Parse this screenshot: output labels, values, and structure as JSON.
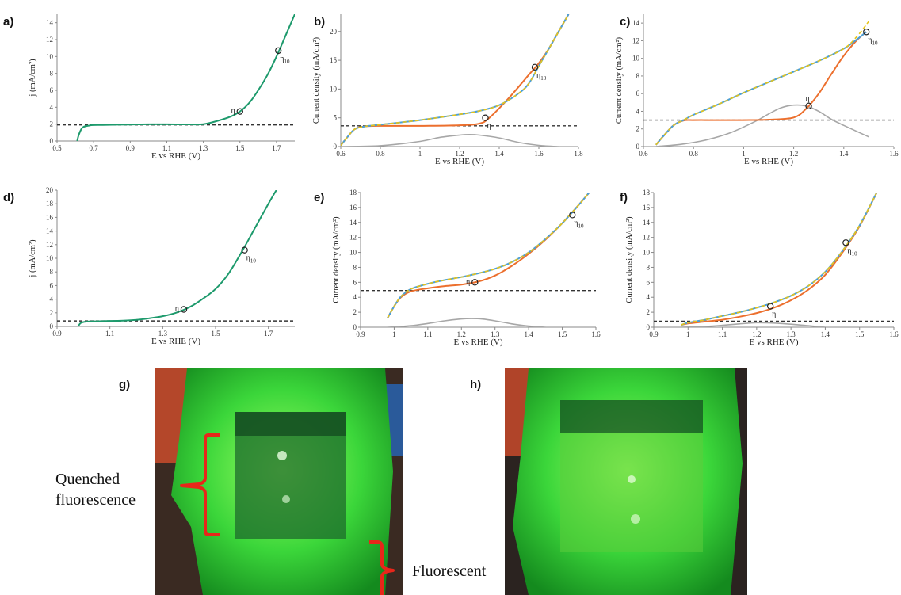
{
  "colors": {
    "green": "#1d9a6c",
    "orange": "#ec6f2d",
    "blue": "#4a9fd9",
    "yellow_dash": "#e6c419",
    "gray": "#a7a7a7",
    "dashed": "#333333"
  },
  "photos": {
    "g": {
      "letter": "g)",
      "label_quenched": "Quenched fluorescence",
      "label_fluorescent": "Fluorescent"
    },
    "h": {
      "letter": "h)"
    }
  },
  "chart_data": [
    {
      "panel": "a)",
      "type": "line",
      "xlabel": "E vs RHE (V)",
      "ylabel": "j (mA/cm²)",
      "xlim": [
        0.5,
        1.8
      ],
      "ylim": [
        0,
        15
      ],
      "xticks": [
        "0.5",
        "0.7",
        "0.9",
        "1.1",
        "1.3",
        "1.5",
        "1.7"
      ],
      "xtick_values": [
        0.5,
        0.7,
        0.9,
        1.1,
        1.3,
        1.5,
        1.7
      ],
      "yticks": [
        "0",
        "2",
        "4",
        "6",
        "8",
        "10",
        "12",
        "14"
      ],
      "ytick_values": [
        0,
        2,
        4,
        6,
        8,
        10,
        12,
        14
      ],
      "baseline": 1.9,
      "series": [
        {
          "color": "green",
          "style": "solid",
          "x": [
            0.61,
            0.62,
            0.64,
            0.68,
            0.75,
            0.9,
            1.0,
            1.1,
            1.2,
            1.3,
            1.38,
            1.45,
            1.5,
            1.55,
            1.6,
            1.65,
            1.7,
            1.75,
            1.8
          ],
          "y": [
            0.0,
            0.8,
            1.6,
            1.85,
            1.9,
            1.95,
            1.98,
            1.98,
            1.97,
            2.0,
            2.4,
            2.9,
            3.5,
            4.5,
            6.0,
            7.8,
            10.0,
            12.5,
            15.0
          ]
        }
      ],
      "markers": [
        {
          "x": 1.5,
          "y": 3.5,
          "label": "η",
          "pos": "left"
        },
        {
          "x": 1.71,
          "y": 10.7,
          "label": "η10",
          "pos": "below"
        }
      ]
    },
    {
      "panel": "b)",
      "type": "line",
      "xlabel": "E vs RHE (V)",
      "ylabel": "Current density (mA/cm²)",
      "xlim": [
        0.6,
        1.8
      ],
      "ylim": [
        0,
        23
      ],
      "xticks": [
        "0.6",
        "0.8",
        "1",
        "1.2",
        "1.4",
        "1.6",
        "1.8"
      ],
      "xtick_values": [
        0.6,
        0.8,
        1.0,
        1.2,
        1.4,
        1.6,
        1.8
      ],
      "yticks": [
        "0",
        "5",
        "10",
        "15",
        "20"
      ],
      "ytick_values": [
        0,
        5,
        10,
        15,
        20
      ],
      "baseline": 3.6,
      "series": [
        {
          "color": "orange",
          "style": "solid",
          "x": [
            0.6,
            0.63,
            0.67,
            0.72,
            0.8,
            1.0,
            1.2,
            1.3,
            1.35,
            1.45,
            1.55,
            1.6,
            1.65,
            1.7,
            1.75
          ],
          "y": [
            0.2,
            1.5,
            3.0,
            3.5,
            3.6,
            3.6,
            3.7,
            4.0,
            5.0,
            8.5,
            12.5,
            14.5,
            17.0,
            20.0,
            23.0
          ]
        },
        {
          "color": "blue",
          "style": "solid",
          "x": [
            0.6,
            0.63,
            0.67,
            0.72,
            0.8,
            1.0,
            1.2,
            1.3,
            1.4,
            1.5,
            1.55,
            1.6,
            1.65,
            1.7,
            1.75
          ],
          "y": [
            0.2,
            1.5,
            3.0,
            3.5,
            3.8,
            4.6,
            5.6,
            6.2,
            7.2,
            9.3,
            11.0,
            14.0,
            17.0,
            20.0,
            23.0
          ]
        },
        {
          "color": "yellow_dash",
          "style": "dashed",
          "x": [
            0.6,
            0.63,
            0.67,
            0.72,
            0.8,
            1.0,
            1.2,
            1.3,
            1.4,
            1.5,
            1.55,
            1.6,
            1.65,
            1.7,
            1.75
          ],
          "y": [
            0.2,
            1.5,
            3.0,
            3.5,
            3.8,
            4.6,
            5.6,
            6.2,
            7.2,
            9.3,
            11.0,
            14.0,
            17.0,
            20.0,
            23.0
          ]
        },
        {
          "color": "gray",
          "style": "solid",
          "x": [
            0.6,
            0.8,
            1.0,
            1.1,
            1.2,
            1.25,
            1.3,
            1.4,
            1.5,
            1.6,
            1.7
          ],
          "y": [
            0.0,
            0.15,
            0.9,
            1.6,
            2.0,
            2.1,
            2.0,
            1.5,
            0.7,
            0.2,
            0.0
          ]
        }
      ],
      "markers": [
        {
          "x": 1.33,
          "y": 5.0,
          "label": "η",
          "pos": "below"
        },
        {
          "x": 1.58,
          "y": 13.8,
          "label": "η10",
          "pos": "below"
        }
      ]
    },
    {
      "panel": "c)",
      "type": "line",
      "xlabel": "E vs RHE (V)",
      "ylabel": "Current density (mA/cm²)",
      "xlim": [
        0.6,
        1.6
      ],
      "ylim": [
        0,
        15
      ],
      "xticks": [
        "0.6",
        "0.8",
        "1",
        "1.2",
        "1.4",
        "1.6"
      ],
      "xtick_values": [
        0.6,
        0.8,
        1.0,
        1.2,
        1.4,
        1.6
      ],
      "yticks": [
        "0",
        "2",
        "4",
        "6",
        "8",
        "10",
        "12",
        "14"
      ],
      "ytick_values": [
        0,
        2,
        4,
        6,
        8,
        10,
        12,
        14
      ],
      "baseline": 3.0,
      "series": [
        {
          "color": "orange",
          "style": "solid",
          "x": [
            0.65,
            0.68,
            0.72,
            0.76,
            0.8,
            0.9,
            1.0,
            1.1,
            1.2,
            1.25,
            1.3,
            1.35,
            1.4,
            1.45,
            1.49
          ],
          "y": [
            0.2,
            1.2,
            2.4,
            2.95,
            3.0,
            3.0,
            3.0,
            3.05,
            3.3,
            4.3,
            6.0,
            8.2,
            10.3,
            12.0,
            13.0
          ]
        },
        {
          "color": "blue",
          "style": "solid",
          "x": [
            0.65,
            0.68,
            0.72,
            0.76,
            0.8,
            0.9,
            1.0,
            1.1,
            1.2,
            1.3,
            1.4,
            1.45,
            1.49
          ],
          "y": [
            0.2,
            1.2,
            2.4,
            3.0,
            3.6,
            4.8,
            6.1,
            7.3,
            8.5,
            9.7,
            11.1,
            12.1,
            13.0
          ]
        },
        {
          "color": "yellow_dash",
          "style": "dashed",
          "x": [
            0.65,
            0.68,
            0.72,
            0.76,
            0.8,
            0.9,
            1.0,
            1.1,
            1.2,
            1.3,
            1.4,
            1.45,
            1.5
          ],
          "y": [
            0.2,
            1.2,
            2.4,
            3.0,
            3.6,
            4.8,
            6.1,
            7.3,
            8.5,
            9.7,
            11.1,
            12.4,
            14.2
          ]
        },
        {
          "color": "gray",
          "style": "solid",
          "x": [
            0.65,
            0.75,
            0.85,
            0.95,
            1.05,
            1.1,
            1.15,
            1.2,
            1.25,
            1.3,
            1.35,
            1.4,
            1.5
          ],
          "y": [
            0.0,
            0.25,
            0.75,
            1.6,
            2.9,
            3.7,
            4.4,
            4.7,
            4.6,
            4.0,
            3.1,
            2.4,
            1.1
          ]
        }
      ],
      "markers": [
        {
          "x": 1.26,
          "y": 4.6,
          "label": "η",
          "pos": "above"
        },
        {
          "x": 1.49,
          "y": 13.0,
          "label": "η10",
          "pos": "below"
        }
      ]
    },
    {
      "panel": "d)",
      "type": "line",
      "xlabel": "E vs RHE (V)",
      "ylabel": "j (mA/cm²)",
      "xlim": [
        0.9,
        1.8
      ],
      "ylim": [
        0,
        20
      ],
      "xticks": [
        "0.9",
        "1.1",
        "1.3",
        "1.5",
        "1.7"
      ],
      "xtick_values": [
        0.9,
        1.1,
        1.3,
        1.5,
        1.7
      ],
      "yticks": [
        "0",
        "2",
        "4",
        "6",
        "8",
        "10",
        "12",
        "14",
        "16",
        "18",
        "20"
      ],
      "ytick_values": [
        0,
        2,
        4,
        6,
        8,
        10,
        12,
        14,
        16,
        18,
        20
      ],
      "baseline": 0.8,
      "series": [
        {
          "color": "green",
          "style": "solid",
          "x": [
            0.98,
            0.99,
            1.01,
            1.05,
            1.1,
            1.15,
            1.2,
            1.25,
            1.3,
            1.35,
            1.4,
            1.45,
            1.5,
            1.55,
            1.6,
            1.65,
            1.7,
            1.73
          ],
          "y": [
            0.0,
            0.5,
            0.7,
            0.75,
            0.8,
            0.85,
            0.95,
            1.2,
            1.5,
            2.0,
            2.8,
            4.0,
            5.5,
            7.8,
            11.0,
            14.5,
            18.0,
            20.0
          ]
        }
      ],
      "markers": [
        {
          "x": 1.38,
          "y": 2.5,
          "label": "η",
          "pos": "left"
        },
        {
          "x": 1.61,
          "y": 11.2,
          "label": "η10",
          "pos": "below"
        }
      ]
    },
    {
      "panel": "e)",
      "type": "line",
      "xlabel": "E vs RHE (V)",
      "ylabel": "Current density (mA/cm²)",
      "xlim": [
        0.9,
        1.6
      ],
      "ylim": [
        0,
        18
      ],
      "xticks": [
        "0.9",
        "1",
        "1.1",
        "1.2",
        "1.3",
        "1.4",
        "1.5",
        "1.6"
      ],
      "xtick_values": [
        0.9,
        1.0,
        1.1,
        1.2,
        1.3,
        1.4,
        1.5,
        1.6
      ],
      "yticks": [
        "0",
        "2",
        "4",
        "6",
        "8",
        "10",
        "12",
        "14",
        "16",
        "18"
      ],
      "ytick_values": [
        0,
        2,
        4,
        6,
        8,
        10,
        12,
        14,
        16,
        18
      ],
      "baseline": 4.9,
      "series": [
        {
          "color": "orange",
          "style": "solid",
          "x": [
            0.98,
            1.0,
            1.02,
            1.05,
            1.1,
            1.15,
            1.2,
            1.25,
            1.3,
            1.35,
            1.4,
            1.45,
            1.5,
            1.55,
            1.58
          ],
          "y": [
            1.2,
            2.8,
            4.0,
            4.8,
            5.2,
            5.5,
            5.7,
            6.1,
            6.9,
            8.2,
            9.8,
            11.7,
            13.9,
            16.4,
            18.0
          ]
        },
        {
          "color": "blue",
          "style": "solid",
          "x": [
            0.98,
            1.0,
            1.02,
            1.05,
            1.1,
            1.15,
            1.2,
            1.25,
            1.3,
            1.35,
            1.4,
            1.45,
            1.5,
            1.55,
            1.58
          ],
          "y": [
            1.2,
            2.8,
            4.1,
            5.1,
            5.8,
            6.3,
            6.7,
            7.2,
            7.8,
            8.7,
            10.0,
            11.8,
            13.9,
            16.4,
            18.0
          ]
        },
        {
          "color": "yellow_dash",
          "style": "dashed",
          "x": [
            0.98,
            1.0,
            1.02,
            1.05,
            1.1,
            1.15,
            1.2,
            1.25,
            1.3,
            1.35,
            1.4,
            1.45,
            1.5,
            1.55,
            1.58
          ],
          "y": [
            1.2,
            2.8,
            4.1,
            5.1,
            5.8,
            6.3,
            6.7,
            7.2,
            7.8,
            8.7,
            10.0,
            11.8,
            13.9,
            16.4,
            18.0
          ]
        },
        {
          "color": "gray",
          "style": "solid",
          "x": [
            0.98,
            1.05,
            1.1,
            1.15,
            1.2,
            1.23,
            1.26,
            1.3,
            1.35,
            1.4,
            1.45
          ],
          "y": [
            0.0,
            0.2,
            0.5,
            0.85,
            1.1,
            1.15,
            1.1,
            0.85,
            0.45,
            0.15,
            0.0
          ]
        }
      ],
      "markers": [
        {
          "x": 1.24,
          "y": 6.0,
          "label": "η",
          "pos": "left"
        },
        {
          "x": 1.53,
          "y": 15.0,
          "label": "η10",
          "pos": "below"
        }
      ]
    },
    {
      "panel": "f)",
      "type": "line",
      "xlabel": "E vs RHE (V)",
      "ylabel": "Current density (mA/cm²)",
      "xlim": [
        0.9,
        1.6
      ],
      "ylim": [
        0,
        18
      ],
      "xticks": [
        "0.9",
        "1",
        "1.1",
        "1.2",
        "1.3",
        "1.4",
        "1.5",
        "1.6"
      ],
      "xtick_values": [
        0.9,
        1.0,
        1.1,
        1.2,
        1.3,
        1.4,
        1.5,
        1.6
      ],
      "yticks": [
        "0",
        "2",
        "4",
        "6",
        "8",
        "10",
        "12",
        "14",
        "16",
        "18"
      ],
      "ytick_values": [
        0,
        2,
        4,
        6,
        8,
        10,
        12,
        14,
        16,
        18
      ],
      "baseline": 0.8,
      "series": [
        {
          "color": "orange",
          "style": "solid",
          "x": [
            0.98,
            1.0,
            1.05,
            1.1,
            1.15,
            1.2,
            1.25,
            1.3,
            1.35,
            1.4,
            1.45,
            1.5,
            1.55
          ],
          "y": [
            0.3,
            0.5,
            0.75,
            1.0,
            1.4,
            1.9,
            2.6,
            3.6,
            5.0,
            7.0,
            10.0,
            13.5,
            18.0
          ]
        },
        {
          "color": "blue",
          "style": "solid",
          "x": [
            0.98,
            1.0,
            1.05,
            1.1,
            1.15,
            1.2,
            1.25,
            1.3,
            1.35,
            1.4,
            1.45,
            1.5,
            1.55
          ],
          "y": [
            0.3,
            0.6,
            1.0,
            1.5,
            2.0,
            2.6,
            3.3,
            4.2,
            5.5,
            7.4,
            10.2,
            13.6,
            18.0
          ]
        },
        {
          "color": "yellow_dash",
          "style": "dashed",
          "x": [
            0.98,
            1.0,
            1.05,
            1.1,
            1.15,
            1.2,
            1.25,
            1.3,
            1.35,
            1.4,
            1.45,
            1.5,
            1.55
          ],
          "y": [
            0.3,
            0.6,
            1.0,
            1.5,
            2.0,
            2.6,
            3.3,
            4.2,
            5.5,
            7.4,
            10.2,
            13.6,
            18.0
          ]
        },
        {
          "color": "gray",
          "style": "solid",
          "x": [
            0.98,
            1.05,
            1.1,
            1.15,
            1.2,
            1.25,
            1.3,
            1.35,
            1.4
          ],
          "y": [
            0.0,
            0.1,
            0.25,
            0.45,
            0.6,
            0.55,
            0.4,
            0.2,
            0.0
          ]
        }
      ],
      "markers": [
        {
          "x": 1.24,
          "y": 2.8,
          "label": "η",
          "pos": "below"
        },
        {
          "x": 1.46,
          "y": 11.3,
          "label": "η10",
          "pos": "below"
        }
      ]
    }
  ]
}
